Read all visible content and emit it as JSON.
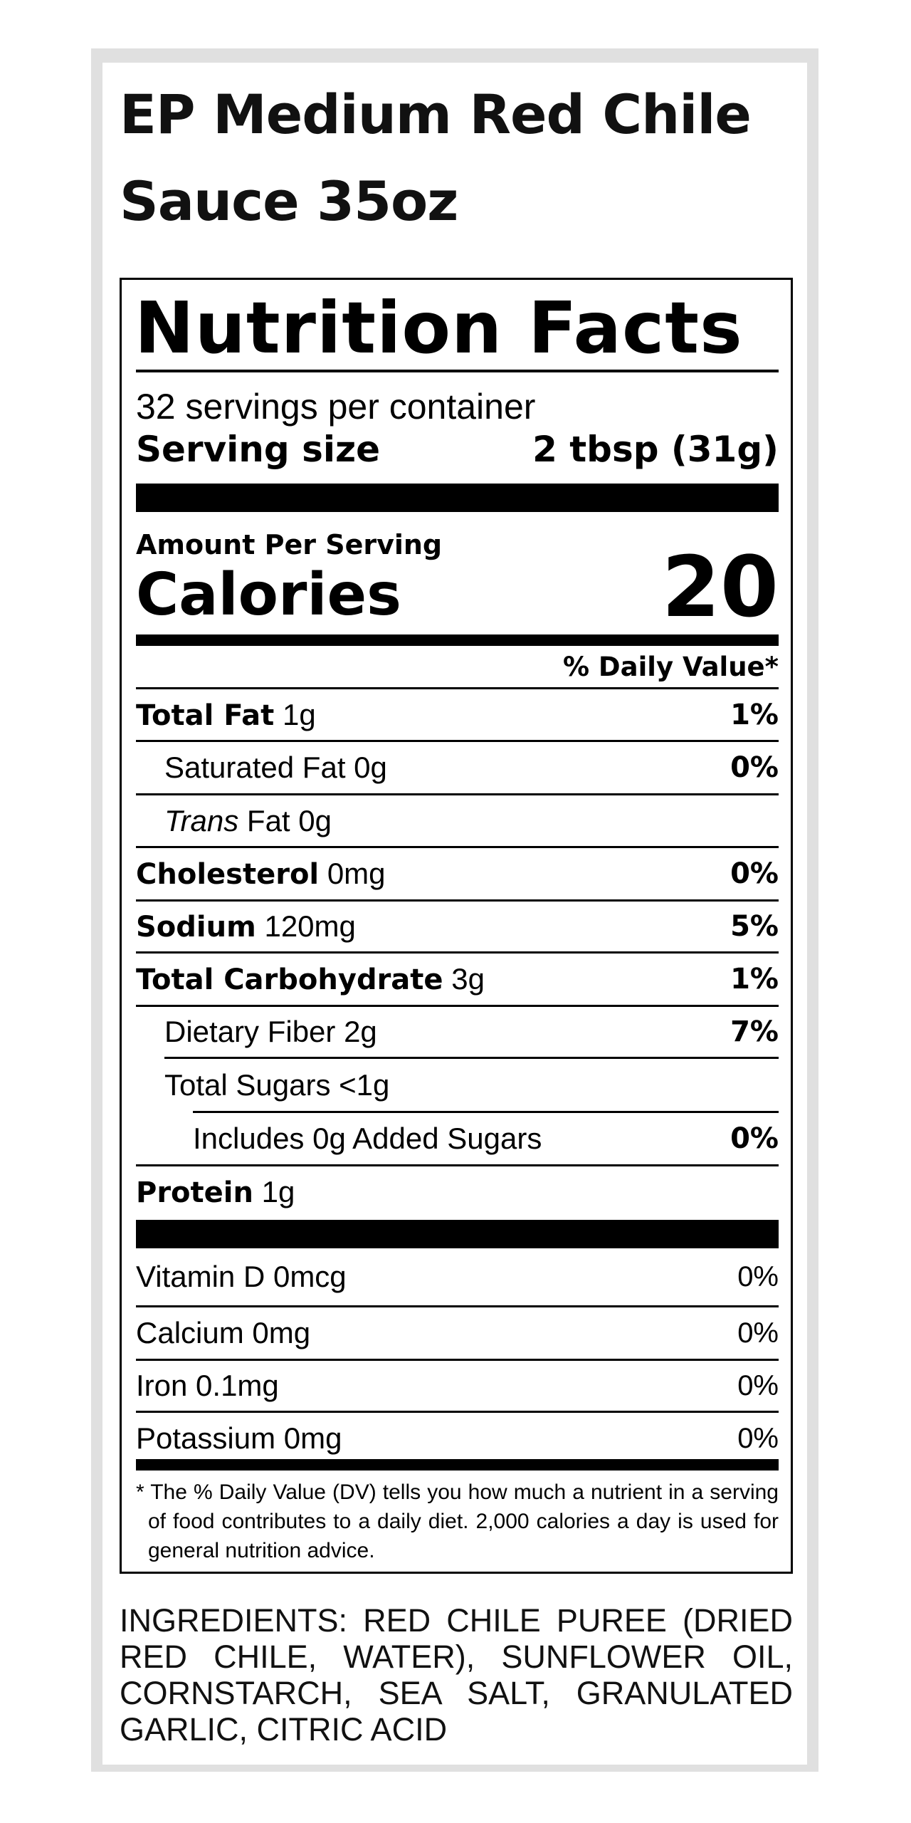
{
  "product": {
    "title_line1": "EP Medium Red Chile",
    "title_line2": "Sauce 35oz"
  },
  "label": {
    "heading": "Nutrition Facts",
    "servings_per_container": "32 servings per container",
    "serving_size_label": "Serving size",
    "serving_size_value": "2 tbsp (31g)",
    "amount_per_serving": "Amount Per Serving",
    "calories_label": "Calories",
    "calories_value": "20",
    "dv_header": "% Daily Value*",
    "nutrients": [
      {
        "name": "Total Fat",
        "amount": "1g",
        "dv": "1%"
      },
      {
        "name": "Saturated Fat",
        "amount": "0g",
        "dv": "0%"
      },
      {
        "name_italic": "Trans",
        "name": "Fat",
        "amount": "0g",
        "dv": ""
      },
      {
        "name": "Cholesterol",
        "amount": "0mg",
        "dv": "0%"
      },
      {
        "name": "Sodium",
        "amount": "120mg",
        "dv": "5%"
      },
      {
        "name": "Total Carbohydrate",
        "amount": "3g",
        "dv": "1%"
      },
      {
        "name": "Dietary Fiber",
        "amount": "2g",
        "dv": "7%"
      },
      {
        "name": "Total Sugars",
        "amount": "<1g",
        "dv": ""
      },
      {
        "text": "Includes 0g Added Sugars",
        "dv": "0%"
      },
      {
        "name": "Protein",
        "amount": "1g",
        "dv": ""
      }
    ],
    "vitamins": [
      {
        "text": "Vitamin D 0mcg",
        "dv": "0%"
      },
      {
        "text": "Calcium 0mg",
        "dv": "0%"
      },
      {
        "text": "Iron 0.1mg",
        "dv": "0%"
      },
      {
        "text": "Potassium 0mg",
        "dv": "0%"
      }
    ],
    "footnote": "* The % Daily Value (DV) tells you how much a nutrient in a serving of food contributes to a daily diet. 2,000 calories a day is used for general nutrition advice."
  },
  "ingredients": "INGREDIENTS: RED CHILE PUREE (DRIED RED CHILE, WATER), SUNFLOWER OIL, CORNSTARCH, SEA SALT, GRANULATED GARLIC, CITRIC ACID"
}
